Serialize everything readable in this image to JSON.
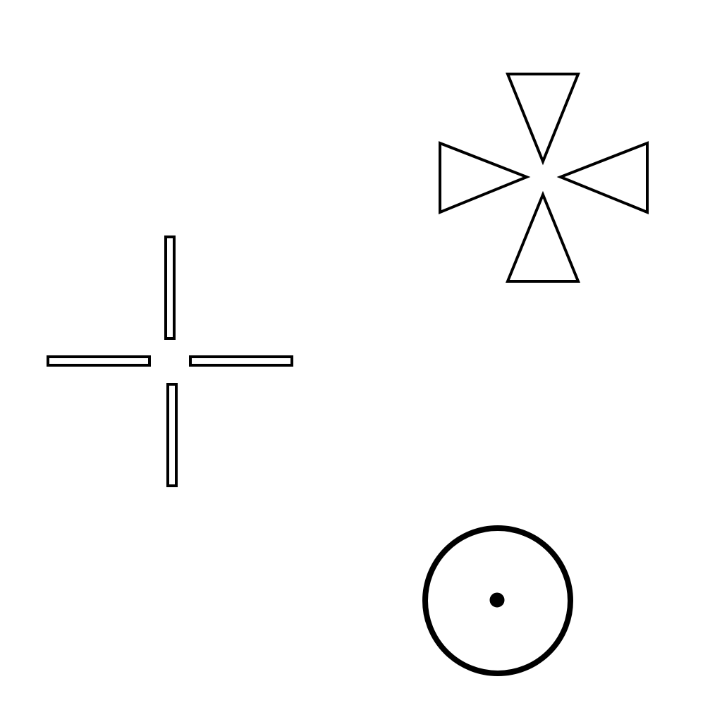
{
  "colors": {
    "background": "#ffffff",
    "stroke": "#000000"
  },
  "shapes": [
    {
      "name": "crosshair-bars-icon",
      "kind": "crosshair-bars"
    },
    {
      "name": "four-triangles-star-icon",
      "kind": "four-triangles"
    },
    {
      "name": "circle-dot-target-icon",
      "kind": "circle-dot"
    }
  ]
}
